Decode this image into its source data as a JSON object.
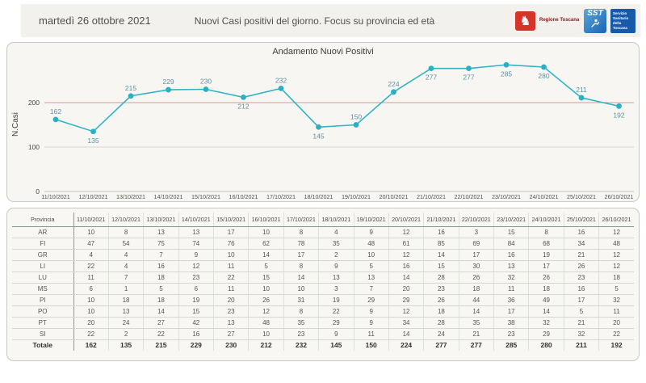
{
  "header": {
    "date": "martedì 26 ottobre 2021",
    "title": "Nuovi Casi positivi del giorno. Focus su provincia ed età",
    "logos": {
      "regione_label": "Regione Toscana",
      "sst_acronym": "SST",
      "sst_label": "Servizio Sanitario della Toscana"
    }
  },
  "chart_data": {
    "type": "line",
    "title": "Andamento Nuovi Positivi",
    "xlabel": "",
    "ylabel": "N.Casi",
    "x": [
      "11/10/2021",
      "12/10/2021",
      "13/10/2021",
      "14/10/2021",
      "15/10/2021",
      "16/10/2021",
      "17/10/2021",
      "18/10/2021",
      "19/10/2021",
      "20/10/2021",
      "21/10/2021",
      "22/10/2021",
      "23/10/2021",
      "24/10/2021",
      "25/10/2021",
      "26/10/2021"
    ],
    "values": [
      162,
      135,
      215,
      229,
      230,
      212,
      232,
      145,
      150,
      224,
      277,
      277,
      285,
      280,
      211,
      192
    ],
    "label_side": [
      "above",
      "below",
      "above",
      "above",
      "above",
      "below",
      "above",
      "below",
      "above",
      "above",
      "below",
      "below",
      "below",
      "below",
      "above",
      "below"
    ],
    "yticks": [
      0,
      100,
      200
    ],
    "ylim": [
      0,
      300
    ],
    "grid": true,
    "legend": "none",
    "colors": {
      "line": "#30b4c6",
      "marker": "#2bafc3",
      "label": "#5f8fa0",
      "gridline_red": "#cf9b90",
      "gridline": "#d9d7d3",
      "axis": "#c6c4c0",
      "tick_text": "#4a4846"
    }
  },
  "table": {
    "corner_header": "Provincia",
    "date_headers": [
      "11/10/2021",
      "12/10/2021",
      "13/10/2021",
      "14/10/2021",
      "15/10/2021",
      "16/10/2021",
      "17/10/2021",
      "18/10/2021",
      "19/10/2021",
      "20/10/2021",
      "21/10/2021",
      "22/10/2021",
      "23/10/2021",
      "24/10/2021",
      "25/10/2021",
      "26/10/2021"
    ],
    "rows": [
      {
        "province": "AR",
        "values": [
          10,
          8,
          13,
          13,
          17,
          10,
          8,
          4,
          9,
          12,
          16,
          3,
          15,
          8,
          16,
          12
        ]
      },
      {
        "province": "FI",
        "values": [
          47,
          54,
          75,
          74,
          76,
          62,
          78,
          35,
          48,
          61,
          85,
          69,
          84,
          68,
          34,
          48
        ]
      },
      {
        "province": "GR",
        "values": [
          4,
          4,
          7,
          9,
          10,
          14,
          17,
          2,
          10,
          12,
          14,
          17,
          16,
          19,
          21,
          12
        ]
      },
      {
        "province": "LI",
        "values": [
          22,
          4,
          16,
          12,
          11,
          5,
          8,
          9,
          5,
          16,
          15,
          30,
          13,
          17,
          26,
          12
        ]
      },
      {
        "province": "LU",
        "values": [
          11,
          7,
          18,
          23,
          22,
          15,
          14,
          13,
          13,
          14,
          28,
          26,
          32,
          26,
          23,
          18
        ]
      },
      {
        "province": "MS",
        "values": [
          6,
          1,
          5,
          6,
          11,
          10,
          10,
          3,
          7,
          20,
          23,
          18,
          11,
          18,
          16,
          5
        ]
      },
      {
        "province": "PI",
        "values": [
          10,
          18,
          18,
          19,
          20,
          26,
          31,
          19,
          29,
          29,
          26,
          44,
          36,
          49,
          17,
          32
        ]
      },
      {
        "province": "PO",
        "values": [
          10,
          13,
          14,
          15,
          23,
          12,
          8,
          22,
          9,
          12,
          18,
          14,
          17,
          14,
          5,
          11
        ]
      },
      {
        "province": "PT",
        "values": [
          20,
          24,
          27,
          42,
          13,
          48,
          35,
          29,
          9,
          34,
          28,
          35,
          38,
          32,
          21,
          20
        ]
      },
      {
        "province": "SI",
        "values": [
          22,
          2,
          22,
          16,
          27,
          10,
          23,
          9,
          11,
          14,
          24,
          21,
          23,
          29,
          32,
          22
        ]
      }
    ],
    "totale": {
      "label": "Totale",
      "values": [
        162,
        135,
        215,
        229,
        230,
        212,
        232,
        145,
        150,
        224,
        277,
        277,
        285,
        280,
        211,
        192
      ]
    }
  }
}
